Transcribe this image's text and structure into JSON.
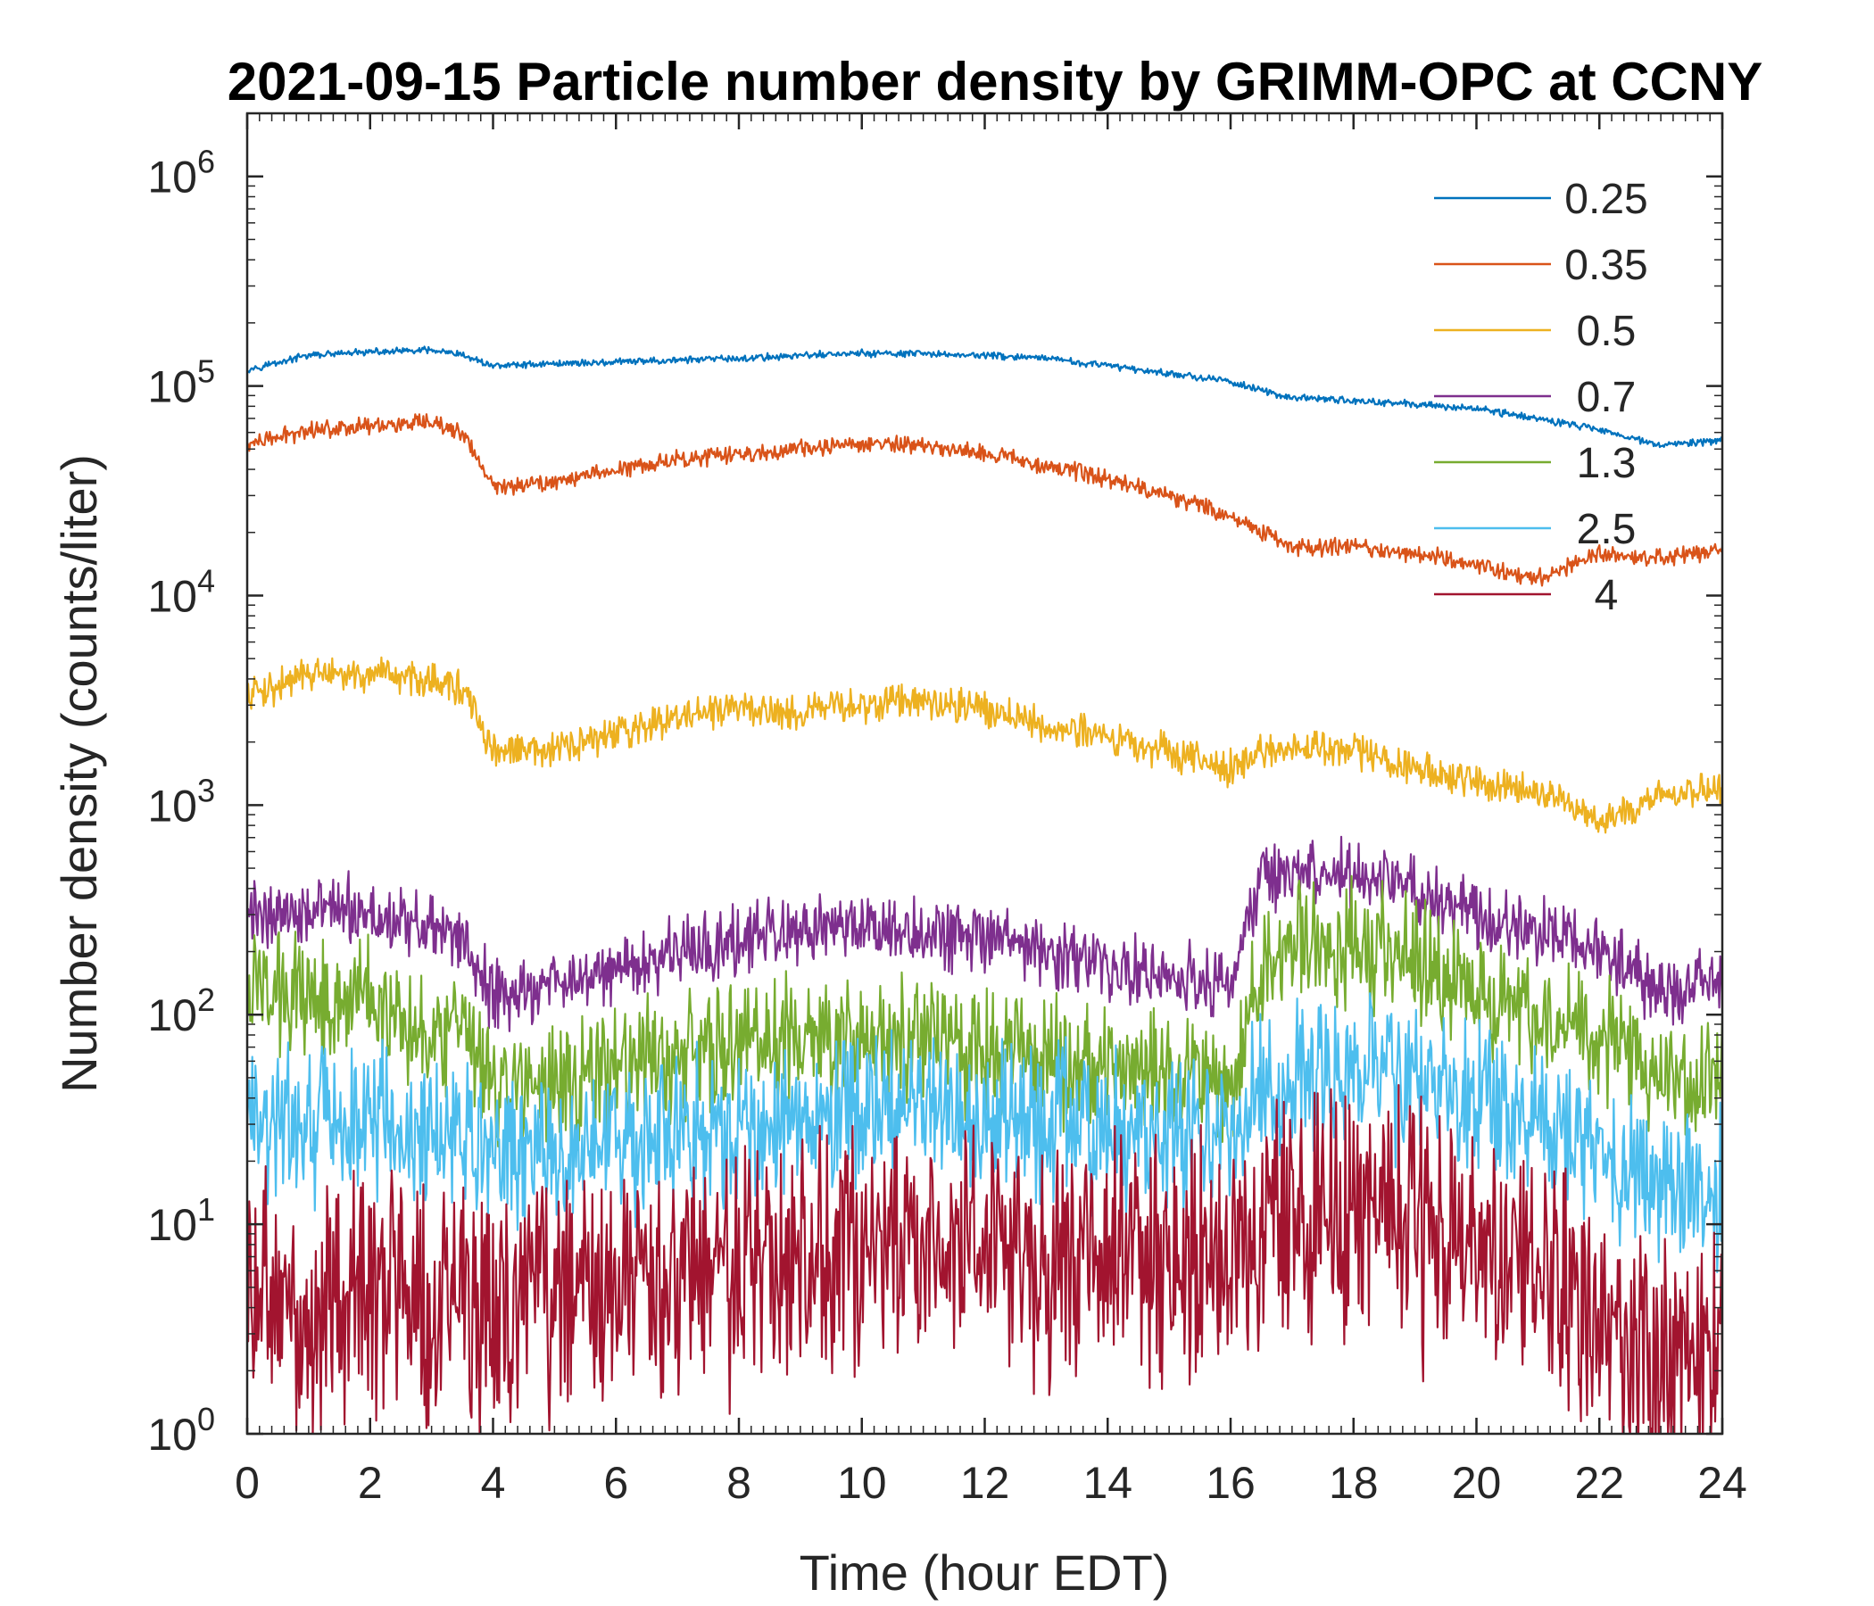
{
  "chart_data": {
    "type": "line",
    "title": "2021-09-15 Particle number density by GRIMM-OPC at CCNY",
    "xlabel": "Time (hour EDT)",
    "ylabel": "Number density (counts/liter)",
    "xlim": [
      0,
      24
    ],
    "ylim": [
      1,
      2000000
    ],
    "yscale": "log",
    "x_ticks": [
      0,
      2,
      4,
      6,
      8,
      10,
      12,
      14,
      16,
      18,
      20,
      22,
      24
    ],
    "x_tick_labels": [
      "0",
      "2",
      "4",
      "6",
      "8",
      "10",
      "12",
      "14",
      "16",
      "18",
      "20",
      "22",
      "24"
    ],
    "y_ticks": [
      1,
      10,
      100,
      1000,
      10000,
      100000,
      1000000
    ],
    "y_tick_labels": [
      {
        "base": "10",
        "exp": "0"
      },
      {
        "base": "10",
        "exp": "1"
      },
      {
        "base": "10",
        "exp": "2"
      },
      {
        "base": "10",
        "exp": "3"
      },
      {
        "base": "10",
        "exp": "4"
      },
      {
        "base": "10",
        "exp": "5"
      },
      {
        "base": "10",
        "exp": "6"
      }
    ],
    "grid": false,
    "legend_position": "top-right",
    "x": [
      0,
      1,
      2,
      3,
      3.5,
      4,
      5,
      6,
      7,
      8,
      9,
      10,
      11,
      12,
      13,
      14,
      15,
      16,
      16.5,
      17,
      18,
      19,
      20,
      21,
      22,
      23,
      24
    ],
    "series": [
      {
        "name": "0.25",
        "color": "#0072BD",
        "noise": 0.02,
        "values": [
          120000,
          140000,
          145000,
          148000,
          140000,
          125000,
          128000,
          130000,
          133000,
          135000,
          140000,
          143000,
          142000,
          140000,
          135000,
          125000,
          115000,
          105000,
          95000,
          88000,
          85000,
          82000,
          78000,
          70000,
          62000,
          52000,
          55000
        ]
      },
      {
        "name": "0.35",
        "color": "#D95319",
        "noise": 0.05,
        "values": [
          52000,
          62000,
          65000,
          66000,
          60000,
          33000,
          35000,
          40000,
          45000,
          47000,
          50000,
          53000,
          52000,
          48000,
          42000,
          36000,
          30000,
          24000,
          20000,
          17000,
          17000,
          16000,
          14000,
          12000,
          16000,
          15000,
          16500
        ]
      },
      {
        "name": "0.5",
        "color": "#EDB120",
        "noise": 0.1,
        "values": [
          3300,
          4200,
          4100,
          4000,
          3600,
          1800,
          1800,
          2200,
          2600,
          2900,
          2800,
          3000,
          3200,
          2900,
          2400,
          2100,
          1800,
          1500,
          1800,
          1850,
          1850,
          1500,
          1300,
          1200,
          850,
          1100,
          1200
        ]
      },
      {
        "name": "0.7",
        "color": "#7E2F8E",
        "noise": 0.2,
        "values": [
          300,
          320,
          300,
          260,
          220,
          120,
          140,
          170,
          200,
          230,
          240,
          260,
          250,
          220,
          200,
          170,
          150,
          140,
          450,
          470,
          450,
          380,
          300,
          250,
          200,
          130,
          150
        ]
      },
      {
        "name": "1.3",
        "color": "#77AC30",
        "noise": 0.35,
        "values": [
          130,
          130,
          120,
          90,
          75,
          45,
          45,
          55,
          65,
          70,
          75,
          80,
          75,
          65,
          60,
          55,
          50,
          45,
          180,
          220,
          220,
          180,
          130,
          100,
          80,
          45,
          50
        ]
      },
      {
        "name": "2.5",
        "color": "#4DBEEE",
        "noise": 0.45,
        "values": [
          30,
          30,
          30,
          28,
          25,
          22,
          22,
          25,
          27,
          28,
          30,
          33,
          35,
          33,
          30,
          28,
          27,
          25,
          45,
          50,
          50,
          45,
          38,
          30,
          22,
          15,
          14
        ]
      },
      {
        "name": "4",
        "color": "#A2142F",
        "noise": 0.7,
        "values": [
          4,
          4,
          4.5,
          4,
          4,
          4,
          4.2,
          4.8,
          5.5,
          6,
          7,
          8,
          8.5,
          8,
          7,
          6.5,
          6.5,
          7,
          10,
          11,
          11,
          9,
          7,
          6,
          4,
          2.5,
          2.5
        ]
      }
    ]
  }
}
